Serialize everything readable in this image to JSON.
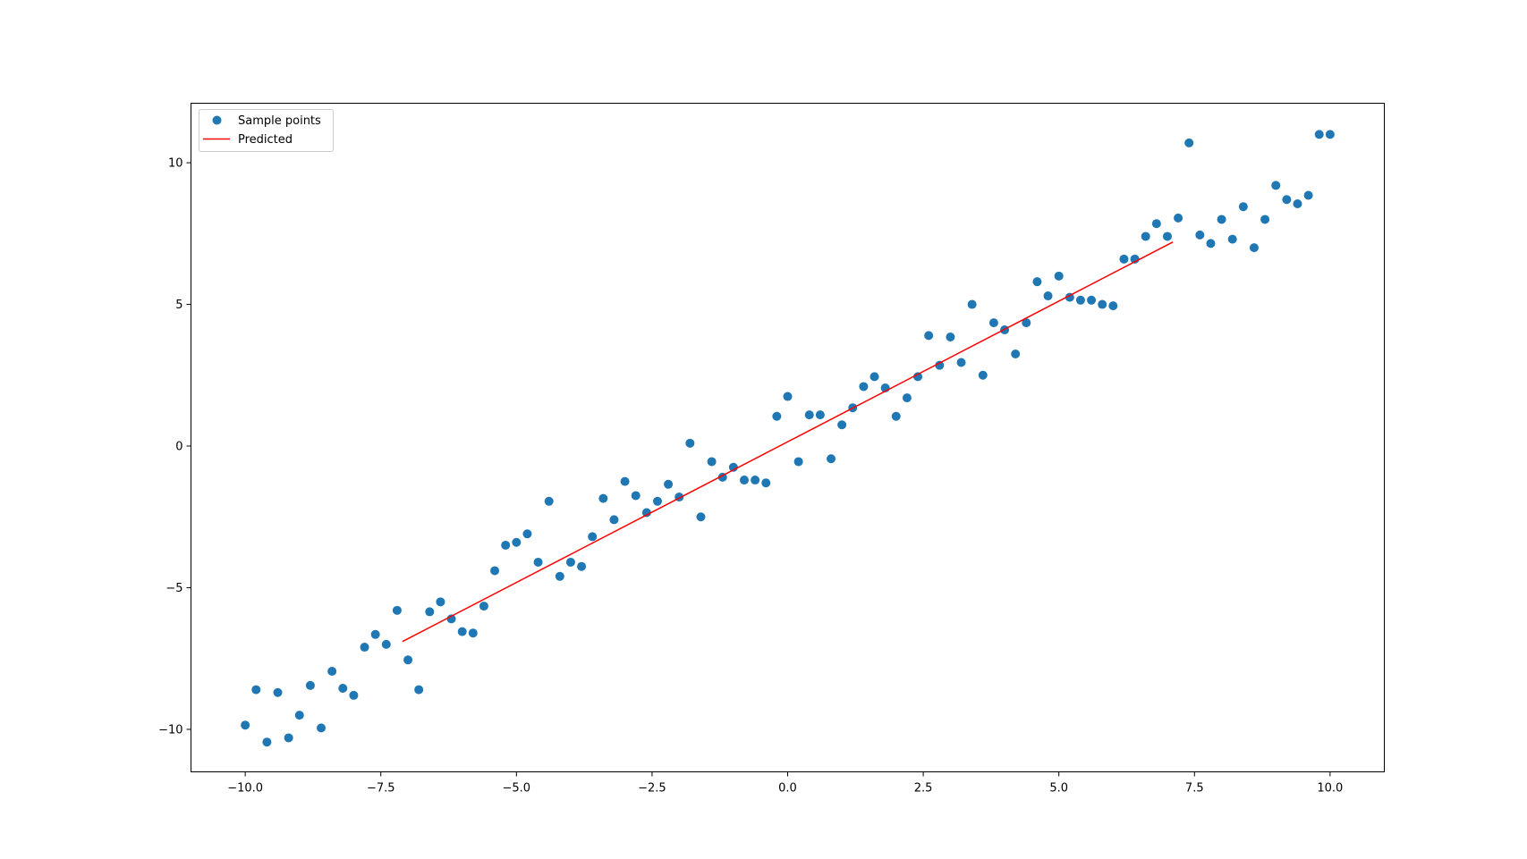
{
  "chart_data": {
    "type": "scatter",
    "title": "",
    "xlabel": "",
    "ylabel": "",
    "xlim": [
      -11.0,
      11.0
    ],
    "ylim": [
      -11.5,
      12.1
    ],
    "xticks": [
      -10.0,
      -7.5,
      -5.0,
      -2.5,
      0.0,
      2.5,
      5.0,
      7.5,
      10.0
    ],
    "xtick_labels": [
      "−10.0",
      "−7.5",
      "−5.0",
      "−2.5",
      "0.0",
      "2.5",
      "5.0",
      "7.5",
      "10.0"
    ],
    "yticks": [
      -10,
      -5,
      0,
      5,
      10
    ],
    "ytick_labels": [
      "−10",
      "−5",
      "0",
      "5",
      "10"
    ],
    "grid": false,
    "legend_placement": "top-left",
    "series": [
      {
        "name": "Sample points",
        "kind": "scatter",
        "color": "#1f77b4",
        "x": [
          -10.0,
          -9.8,
          -9.6,
          -9.4,
          -9.2,
          -9.0,
          -8.8,
          -8.6,
          -8.4,
          -8.2,
          -8.0,
          -7.8,
          -7.6,
          -7.4,
          -7.2,
          -7.0,
          -6.8,
          -6.6,
          -6.4,
          -6.2,
          -6.0,
          -5.8,
          -5.6,
          -5.4,
          -5.2,
          -5.0,
          -4.8,
          -4.6,
          -4.4,
          -4.2,
          -4.0,
          -3.8,
          -3.6,
          -3.4,
          -3.2,
          -3.0,
          -2.8,
          -2.6,
          -2.4,
          -2.2,
          -2.0,
          -1.8,
          -1.6,
          -1.4,
          -1.2,
          -1.0,
          -0.8,
          -0.6,
          -0.4,
          -0.2,
          0.0,
          0.2,
          0.4,
          0.6,
          0.8,
          1.0,
          1.2,
          1.4,
          1.6,
          1.8,
          2.0,
          2.2,
          2.4,
          2.6,
          2.8,
          3.0,
          3.2,
          3.4,
          3.6,
          3.8,
          4.0,
          4.2,
          4.4,
          4.6,
          4.8,
          5.0,
          5.2,
          5.4,
          5.6,
          5.8,
          6.0,
          6.2,
          6.4,
          6.6,
          6.8,
          7.0,
          7.2,
          7.4,
          7.6,
          7.8,
          8.0,
          8.2,
          8.4,
          8.6,
          8.8,
          9.0,
          9.2,
          9.4,
          9.6,
          9.8,
          10.0
        ],
        "y": [
          -9.85,
          -8.6,
          -10.45,
          -8.7,
          -10.3,
          -9.5,
          -8.45,
          -9.95,
          -7.95,
          -8.55,
          -8.8,
          -7.1,
          -6.65,
          -7.0,
          -5.8,
          -7.55,
          -8.6,
          -5.85,
          -5.5,
          -6.1,
          -6.55,
          -6.6,
          -5.65,
          -4.4,
          -3.5,
          -3.4,
          -3.1,
          -4.1,
          -1.95,
          -4.6,
          -4.1,
          -4.25,
          -3.2,
          -1.85,
          -2.6,
          -1.25,
          -1.75,
          -2.35,
          -1.95,
          -1.35,
          -1.8,
          0.1,
          -2.5,
          -0.55,
          -1.1,
          -0.75,
          -1.2,
          -1.2,
          -1.3,
          1.05,
          1.75,
          -0.55,
          1.1,
          1.1,
          -0.45,
          0.75,
          1.35,
          2.1,
          2.45,
          2.05,
          1.05,
          1.7,
          2.45,
          3.9,
          2.85,
          3.85,
          2.95,
          5.0,
          2.5,
          4.35,
          4.1,
          3.25,
          4.35,
          5.8,
          5.3,
          6.0,
          5.25,
          5.15,
          5.15,
          5.0,
          4.95,
          6.6,
          6.6,
          7.4,
          7.85,
          7.4,
          8.05,
          10.7,
          7.45,
          7.15,
          8.0,
          7.3,
          8.45,
          7.0,
          8.0,
          9.2,
          8.7,
          8.55,
          8.85,
          11.0,
          11.0
        ]
      },
      {
        "name": "Predicted",
        "kind": "line",
        "color": "#ff0000",
        "x": [
          -7.1,
          7.1
        ],
        "y": [
          -6.9,
          7.2
        ]
      }
    ]
  }
}
